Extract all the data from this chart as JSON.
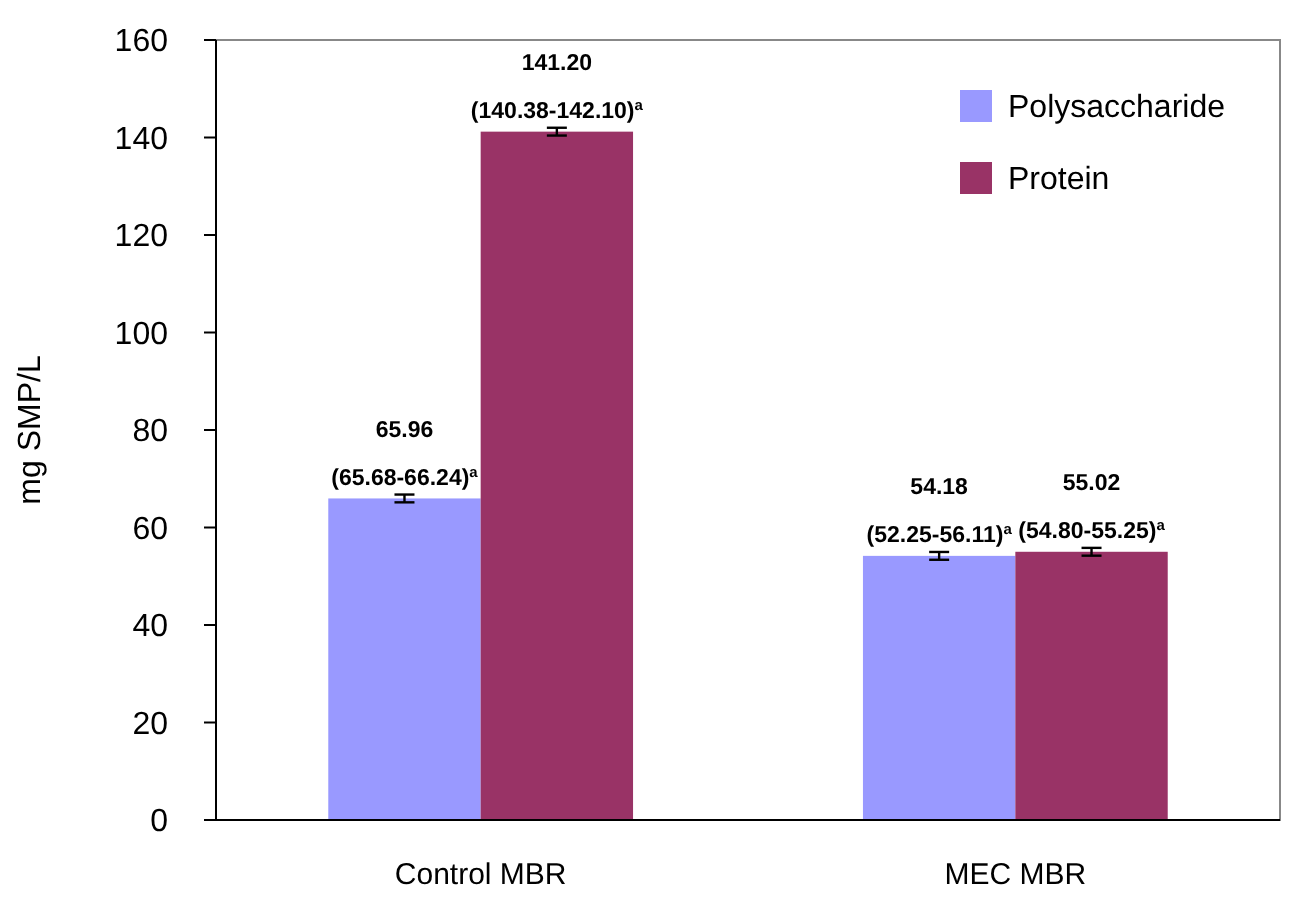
{
  "chart_data": {
    "type": "bar",
    "ylabel": "mg SMP/L",
    "categories": [
      "Control MBR",
      "MEC MBR"
    ],
    "series": [
      {
        "name": "Polysaccharide",
        "color": "#9999ff",
        "values": [
          65.96,
          54.18
        ],
        "errors": [
          0.8,
          0.8
        ],
        "value_labels": [
          "65.96\n(65.68-66.24)$^{a}$",
          "54.18\n(52.25-56.11)$^{a}$"
        ]
      },
      {
        "name": "Protein",
        "color": "#993366",
        "values": [
          141.2,
          55.02
        ],
        "errors": [
          0.8,
          0.8
        ],
        "value_labels": [
          "141.20\n(140.38-142.10)$^{a}$",
          "55.02\n(54.80-55.25)$^{a}$"
        ]
      }
    ],
    "ylim": [
      0,
      160
    ],
    "yticks": [
      0,
      20,
      40,
      60,
      80,
      100,
      120,
      140,
      160
    ],
    "grid": false,
    "legend": "top right"
  }
}
